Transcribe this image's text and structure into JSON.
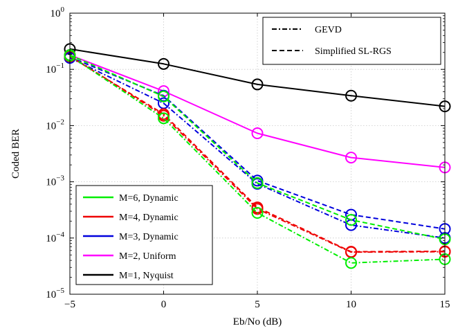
{
  "chart_data": {
    "type": "line",
    "xlabel": "Eb/No (dB)",
    "ylabel": "Coded BER",
    "x": [
      -5,
      0,
      5,
      10,
      15
    ],
    "xlim": [
      -5,
      15
    ],
    "ylim": [
      1e-05,
      1
    ],
    "yscale": "log",
    "xticks": [
      "−5",
      "0",
      "5",
      "10",
      "15"
    ],
    "yticks": [
      {
        "base": "10",
        "exp": "−5"
      },
      {
        "base": "10",
        "exp": "−4"
      },
      {
        "base": "10",
        "exp": "−3"
      },
      {
        "base": "10",
        "exp": "−2"
      },
      {
        "base": "10",
        "exp": "−1"
      },
      {
        "base": "10",
        "exp": "0"
      }
    ],
    "grid": true,
    "legend_top_right": {
      "placement": "top-right",
      "entries": [
        {
          "label": "GEVD",
          "style": "dashdot"
        },
        {
          "label": "Simplified SL-RGS",
          "style": "dashed"
        }
      ]
    },
    "legend_bottom_left": {
      "placement": "bottom-left",
      "entries": [
        {
          "label": "M=6, Dynamic",
          "color": "#00ee00"
        },
        {
          "label": "M=4, Dynamic",
          "color": "#ee0000"
        },
        {
          "label": "M=3, Dynamic",
          "color": "#0000dd"
        },
        {
          "label": "M=2, Uniform",
          "color": "#ff00ff"
        },
        {
          "label": "M=1, Nyquist",
          "color": "#000000"
        }
      ]
    },
    "series": [
      {
        "name": "M=1, Nyquist",
        "color": "#000000",
        "style": "solid",
        "values": [
          0.23,
          0.125,
          0.054,
          0.034,
          0.022
        ]
      },
      {
        "name": "M=2, Uniform",
        "color": "#ff00ff",
        "style": "solid",
        "values": [
          0.18,
          0.041,
          0.0073,
          0.0027,
          0.0018
        ]
      },
      {
        "name": "M=3, Dynamic",
        "color": "#0000dd",
        "style": "dashed",
        "values": [
          0.165,
          0.034,
          0.00105,
          0.00026,
          0.000145
        ]
      },
      {
        "name": "M=3, Dynamic",
        "color": "#0000dd",
        "style": "dashdot",
        "values": [
          0.16,
          0.025,
          0.00092,
          0.00017,
          0.0001
        ]
      },
      {
        "name": "M=6, Dynamic",
        "color": "#00ee00",
        "style": "dashed",
        "values": [
          0.18,
          0.033,
          0.00095,
          0.00021,
          9.5e-05
        ]
      },
      {
        "name": "M=4, Dynamic",
        "color": "#ee0000",
        "style": "dashed",
        "values": [
          0.17,
          0.016,
          0.00035,
          5.7e-05,
          5.8e-05
        ]
      },
      {
        "name": "M=4, Dynamic",
        "color": "#ee0000",
        "style": "dashdot",
        "values": [
          0.175,
          0.015,
          0.00033,
          5.6e-05,
          5.7e-05
        ]
      },
      {
        "name": "M=6, Dynamic",
        "color": "#00ee00",
        "style": "dashdot",
        "values": [
          0.175,
          0.0135,
          0.00028,
          3.6e-05,
          4.2e-05
        ]
      }
    ]
  }
}
